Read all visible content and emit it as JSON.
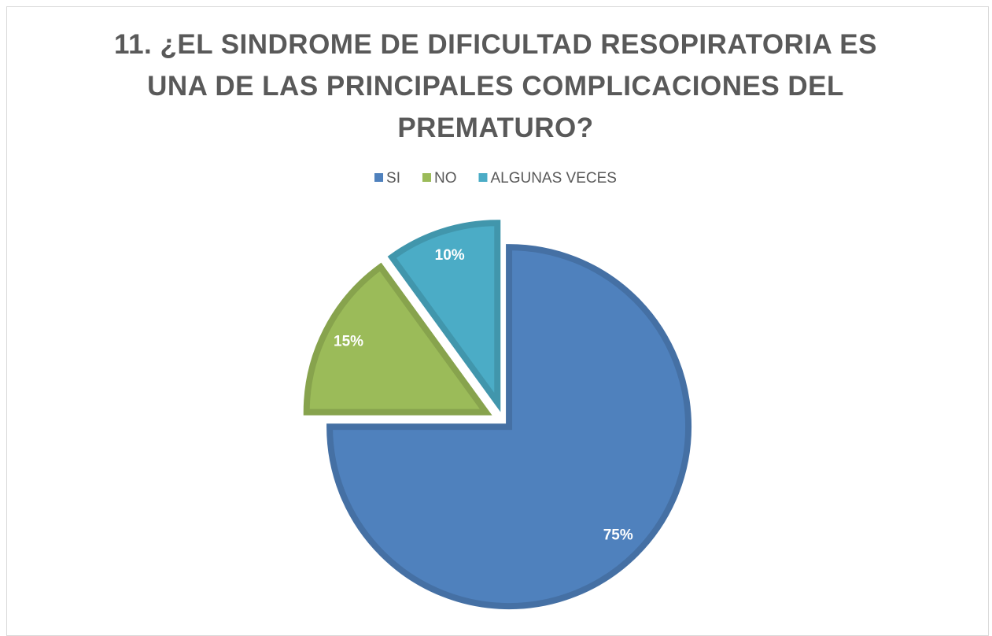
{
  "chart_data": {
    "type": "pie",
    "title": "11. ¿EL SINDROME DE DIFICULTAD RESOPIRATORIA ES UNA DE LAS PRINCIPALES COMPLICACIONES DEL PREMATURO?",
    "categories": [
      "SI",
      "NO",
      "ALGUNAS VECES"
    ],
    "values": [
      75,
      15,
      10
    ],
    "value_labels": [
      "75%",
      "15%",
      "10%"
    ],
    "colors": [
      "#4f81bd",
      "#9bbb59",
      "#4bacc6"
    ],
    "legend": "top"
  }
}
